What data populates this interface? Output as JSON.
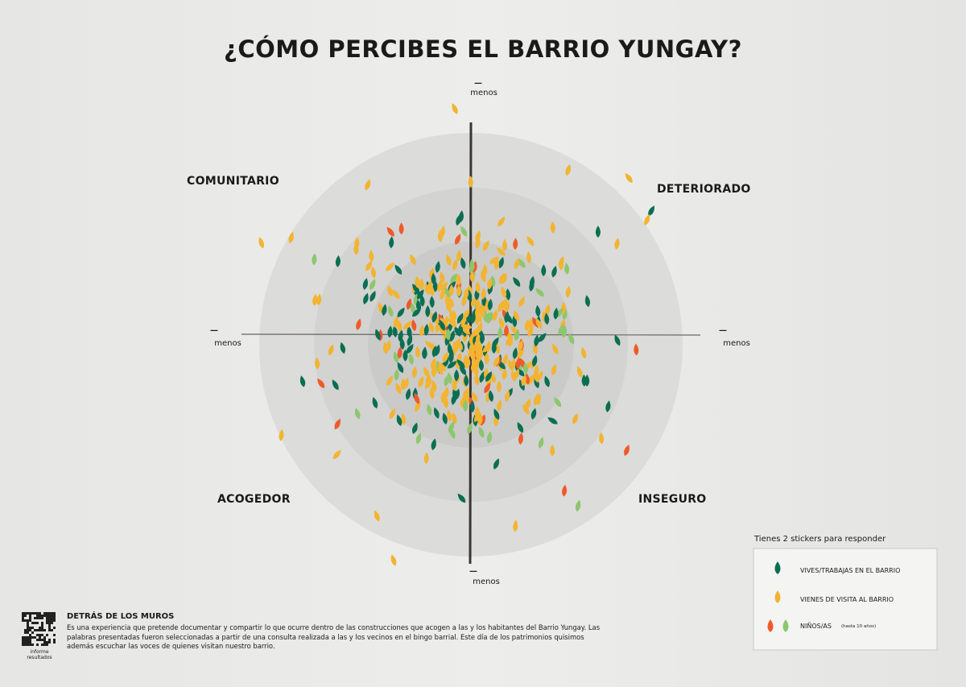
{
  "title": "¿CÓMO PERCIBES EL BARRIO YUNGAY?",
  "quadrants": {
    "top_left": "COMUNITARIO",
    "top_right": "DETERIORADO",
    "bottom_left": "ACOGEDOR",
    "bottom_right": "INSEGURO"
  },
  "axis_ends": {
    "top": {
      "mark": "—",
      "label": "menos"
    },
    "bottom": {
      "mark": "—",
      "label": "menos"
    },
    "left": {
      "mark": "—",
      "label": "menos"
    },
    "right": {
      "mark": "—",
      "label": "menos"
    }
  },
  "legend": {
    "title": "Tienes 2 stickers para responder",
    "items": [
      {
        "label": "VIVES/TRABAJAS EN EL BARRIO"
      },
      {
        "label": "VIENES DE VISITA AL BARRIO"
      },
      {
        "label": "NIÑOS/AS",
        "note": "(hasta 10 años)"
      }
    ]
  },
  "footer": {
    "heading": "DETRÁS DE LOS MUROS",
    "text": "Es una experiencia que pretende documentar y compartir lo que ocurre dentro de las construcciones que acogen a las y los habitantes del Barrio Yungay. Las palabras presentadas fueron seleccionadas a partir de una consulta realizada a las y los vecinos en el bingo barrial. Este día de los patrimonios quisimos además escuchar las voces de quienes visitan nuestro barrio.",
    "qr_caption": "informe resultados"
  }
}
